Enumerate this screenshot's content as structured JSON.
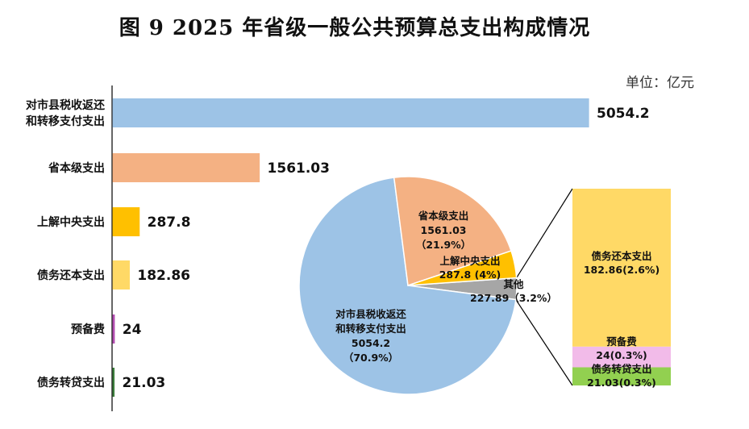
{
  "title": "图 9   2025 年省级一般公共预算总支出构成情况",
  "unit": "单位：亿元",
  "colors": {
    "blue": "#9DC3E6",
    "orange": "#F4B183",
    "gold": "#FFC000",
    "yellow": "#FFD966",
    "pink": "#F2BBE9",
    "green": "#92D050",
    "gray": "#A6A6A6",
    "dark_green": "#3B7D3B",
    "purple": "#B24DB0"
  },
  "chart_data": [
    {
      "type": "bar",
      "orientation": "horizontal",
      "categories": [
        "对市县税收返还\n和转移支付支出",
        "省本级支出",
        "上解中央支出",
        "债务还本支出",
        "预备费",
        "债务转贷支出"
      ],
      "values": [
        5054.2,
        1561.03,
        287.8,
        182.86,
        24,
        21.03
      ],
      "value_labels": [
        "5054.2",
        "1561.03",
        "287.8",
        "182.86",
        "24",
        "21.03"
      ],
      "xlim": [
        0,
        5600
      ]
    },
    {
      "type": "pie",
      "slices": [
        {
          "name": "对市县税收返还\n和转移支付支出",
          "value": 5054.2,
          "value_label": "5054.2",
          "percent_label": "（70.9%）"
        },
        {
          "name": "省本级支出",
          "value": 1561.03,
          "value_label": "1561.03",
          "percent_label": "（21.9%）"
        },
        {
          "name": "上解中央支出",
          "value": 287.8,
          "value_label": "287.8 (4%)",
          "percent_label": ""
        },
        {
          "name": "其他",
          "value": 227.89,
          "value_label": "227.89",
          "percent_label": "（3.2%）"
        }
      ]
    },
    {
      "type": "bar",
      "stacked": true,
      "title": "其他",
      "segments": [
        {
          "name": "债务转贷支出",
          "value": 21.03,
          "value_label": "21.03(0.3%)"
        },
        {
          "name": "预备费",
          "value": 24,
          "value_label": "24(0.3%)"
        },
        {
          "name": "债务还本支出",
          "value": 182.86,
          "value_label": "182.86(2.6%)"
        }
      ]
    }
  ]
}
